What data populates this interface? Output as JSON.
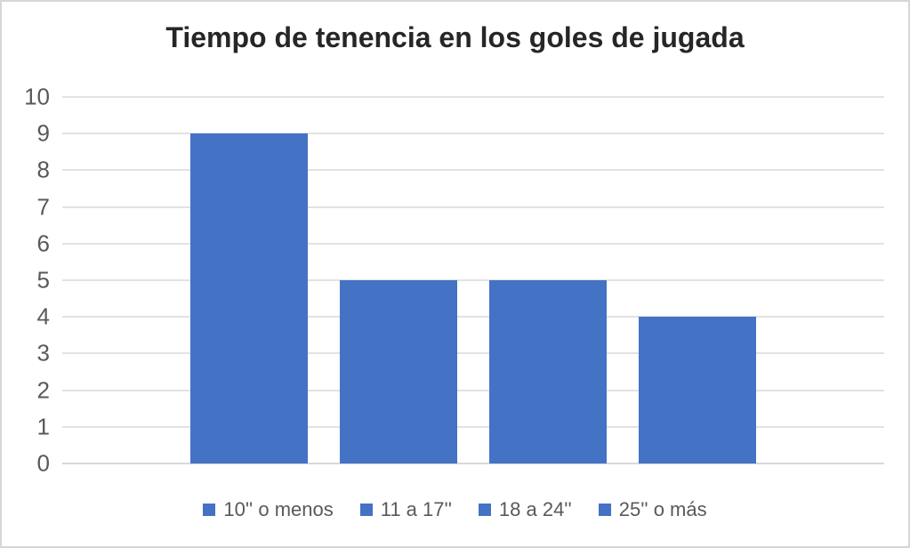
{
  "frame": {
    "background": "#ffffff",
    "border_color": "#d6d6d6"
  },
  "chart_data": {
    "type": "bar",
    "title": "Tiempo de tenencia en los goles de jugada",
    "series": [
      {
        "name": "10'' o menos",
        "value": 9
      },
      {
        "name": "11 a 17''",
        "value": 5
      },
      {
        "name": "18 a 24''",
        "value": 5
      },
      {
        "name": "25'' o más",
        "value": 4
      }
    ],
    "ylim": [
      0,
      10
    ],
    "yticks": [
      0,
      1,
      2,
      3,
      4,
      5,
      6,
      7,
      8,
      9,
      10
    ],
    "grid": true,
    "legend_position": "bottom",
    "bar_color": "#4472C4",
    "gridline_color": "#E2E2E2",
    "axis_line_color": "#D9D9D9",
    "axis_text_color": "#595959",
    "title_color": "#262626"
  }
}
